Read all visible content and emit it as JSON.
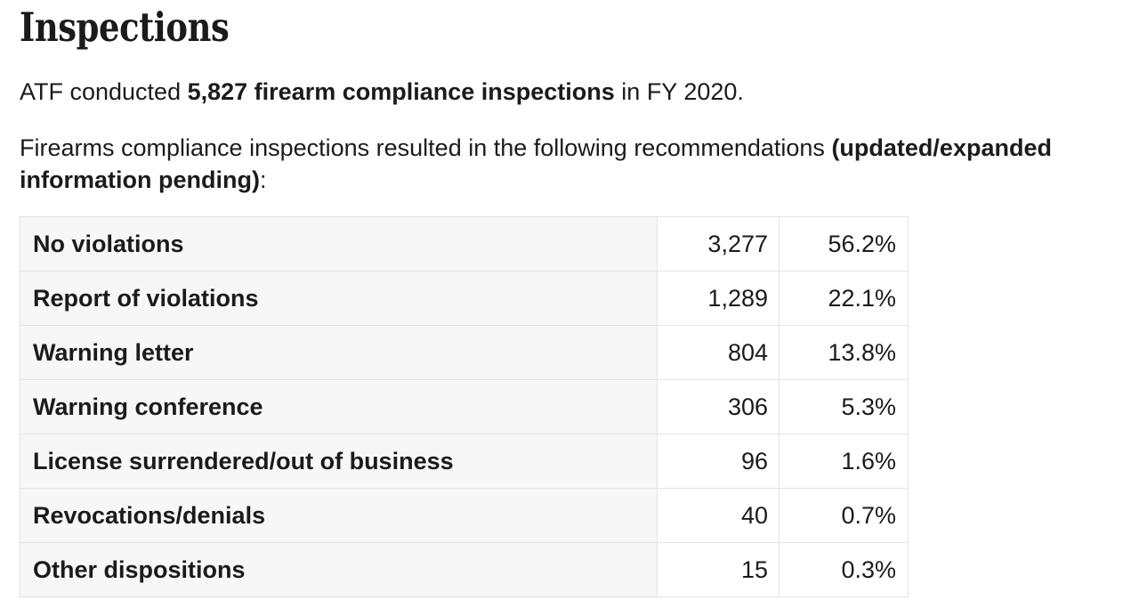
{
  "page": {
    "heading": "Inspections"
  },
  "intro": {
    "text_before": "ATF conducted ",
    "text_bold": "5,827 firearm compliance inspections",
    "text_after": " in FY 2020."
  },
  "recommendations": {
    "line1_regular": "Firearms compliance inspections resulted in the following recommendations ",
    "line1_bold": "(updated/expanded",
    "line2_bold": "information pending)",
    "line2_suffix": ":"
  },
  "table": {
    "rows": [
      {
        "label": "No violations",
        "count": "3,277",
        "percent": "56.2%"
      },
      {
        "label": "Report of violations",
        "count": "1,289",
        "percent": "22.1%"
      },
      {
        "label": "Warning letter",
        "count": "804",
        "percent": "13.8%"
      },
      {
        "label": "Warning conference",
        "count": "306",
        "percent": "5.3%"
      },
      {
        "label": "License surrendered/out of business",
        "count": "96",
        "percent": "1.6%"
      },
      {
        "label": "Revocations/denials",
        "count": "40",
        "percent": "0.7%"
      },
      {
        "label": "Other dispositions",
        "count": "15",
        "percent": "0.3%"
      }
    ]
  },
  "colors": {
    "text": "#1b1b1b",
    "row_header_bg": "#f7f7f7",
    "table_border": "#e3e3e3",
    "background": "#ffffff"
  }
}
